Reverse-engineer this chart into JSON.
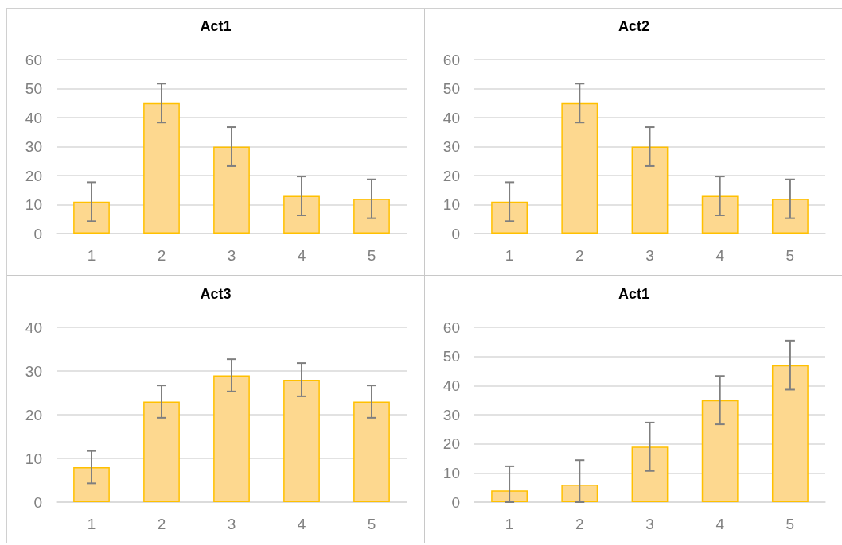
{
  "chart_data": [
    {
      "type": "bar",
      "title": "Act1",
      "categories": [
        "1",
        "2",
        "3",
        "4",
        "5"
      ],
      "values": [
        11,
        45,
        30,
        13,
        12
      ],
      "errors": [
        6.7,
        6.7,
        6.7,
        6.7,
        6.7
      ],
      "color": "#fdd88f",
      "ylim": [
        0,
        60
      ],
      "yticks": [
        0,
        10,
        20,
        30,
        40,
        50,
        60
      ],
      "grid": "y"
    },
    {
      "type": "bar",
      "title": "Act2",
      "categories": [
        "1",
        "2",
        "3",
        "4",
        "5"
      ],
      "values": [
        11,
        45,
        30,
        13,
        12
      ],
      "errors": [
        6.7,
        6.7,
        6.7,
        6.7,
        6.7
      ],
      "color": "#fdd88f",
      "ylim": [
        0,
        60
      ],
      "yticks": [
        0,
        10,
        20,
        30,
        40,
        50,
        60
      ],
      "grid": "y"
    },
    {
      "type": "bar",
      "title": "Act3",
      "categories": [
        "1",
        "2",
        "3",
        "4",
        "5"
      ],
      "values": [
        8,
        23,
        29,
        28,
        23
      ],
      "errors": [
        3.7,
        3.7,
        3.7,
        3.8,
        3.7
      ],
      "color": "#fdd88f",
      "ylim": [
        0,
        40
      ],
      "yticks": [
        0,
        10,
        20,
        30,
        40
      ],
      "grid": "y"
    },
    {
      "type": "bar",
      "title": "Act1",
      "categories": [
        "1",
        "2",
        "3",
        "4",
        "5"
      ],
      "values": [
        4,
        6,
        19,
        35,
        47
      ],
      "errors": [
        [
          0,
          12.3
        ],
        [
          0,
          14.4
        ],
        8.3,
        8.3,
        8.4
      ],
      "color": "#fdd88f",
      "ylim": [
        0,
        60
      ],
      "yticks": [
        0,
        10,
        20,
        30,
        40,
        50,
        60
      ],
      "grid": "y"
    }
  ]
}
